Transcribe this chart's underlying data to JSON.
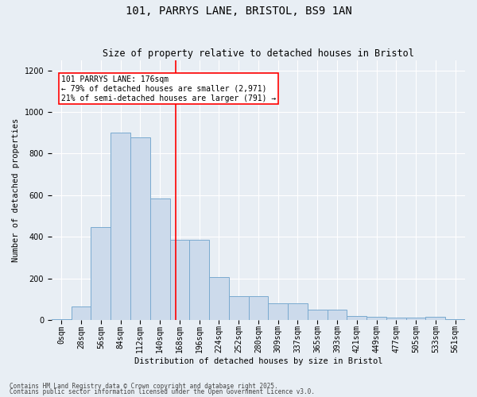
{
  "title": "101, PARRYS LANE, BRISTOL, BS9 1AN",
  "subtitle": "Size of property relative to detached houses in Bristol",
  "xlabel": "Distribution of detached houses by size in Bristol",
  "ylabel": "Number of detached properties",
  "footnote1": "Contains HM Land Registry data © Crown copyright and database right 2025.",
  "footnote2": "Contains public sector information licensed under the Open Government Licence v3.0.",
  "bar_values": [
    5,
    65,
    445,
    900,
    880,
    585,
    385,
    385,
    205,
    115,
    115,
    80,
    80,
    50,
    50,
    20,
    15,
    12,
    12,
    15,
    3
  ],
  "bin_labels": [
    "0sqm",
    "28sqm",
    "56sqm",
    "84sqm",
    "112sqm",
    "140sqm",
    "168sqm",
    "196sqm",
    "224sqm",
    "252sqm",
    "280sqm",
    "309sqm",
    "337sqm",
    "365sqm",
    "393sqm",
    "421sqm",
    "449sqm",
    "477sqm",
    "505sqm",
    "533sqm",
    "561sqm"
  ],
  "bar_color": "#ccdaeb",
  "bar_edge_color": "#7aaad0",
  "annotation_text": "101 PARRYS LANE: 176sqm\n← 79% of detached houses are smaller (2,971)\n21% of semi-detached houses are larger (791) →",
  "annotation_box_color": "white",
  "annotation_box_edge": "red",
  "vline_color": "red",
  "ylim": [
    0,
    1250
  ],
  "yticks": [
    0,
    200,
    400,
    600,
    800,
    1000,
    1200
  ],
  "background_color": "#e8eef4",
  "plot_bg_color": "#e8eef4",
  "grid_color": "white",
  "title_fontsize": 10,
  "subtitle_fontsize": 8.5,
  "ylabel_fontsize": 7.5,
  "xlabel_fontsize": 7.5,
  "tick_fontsize": 7,
  "annotation_fontsize": 7,
  "footnote_fontsize": 5.5
}
